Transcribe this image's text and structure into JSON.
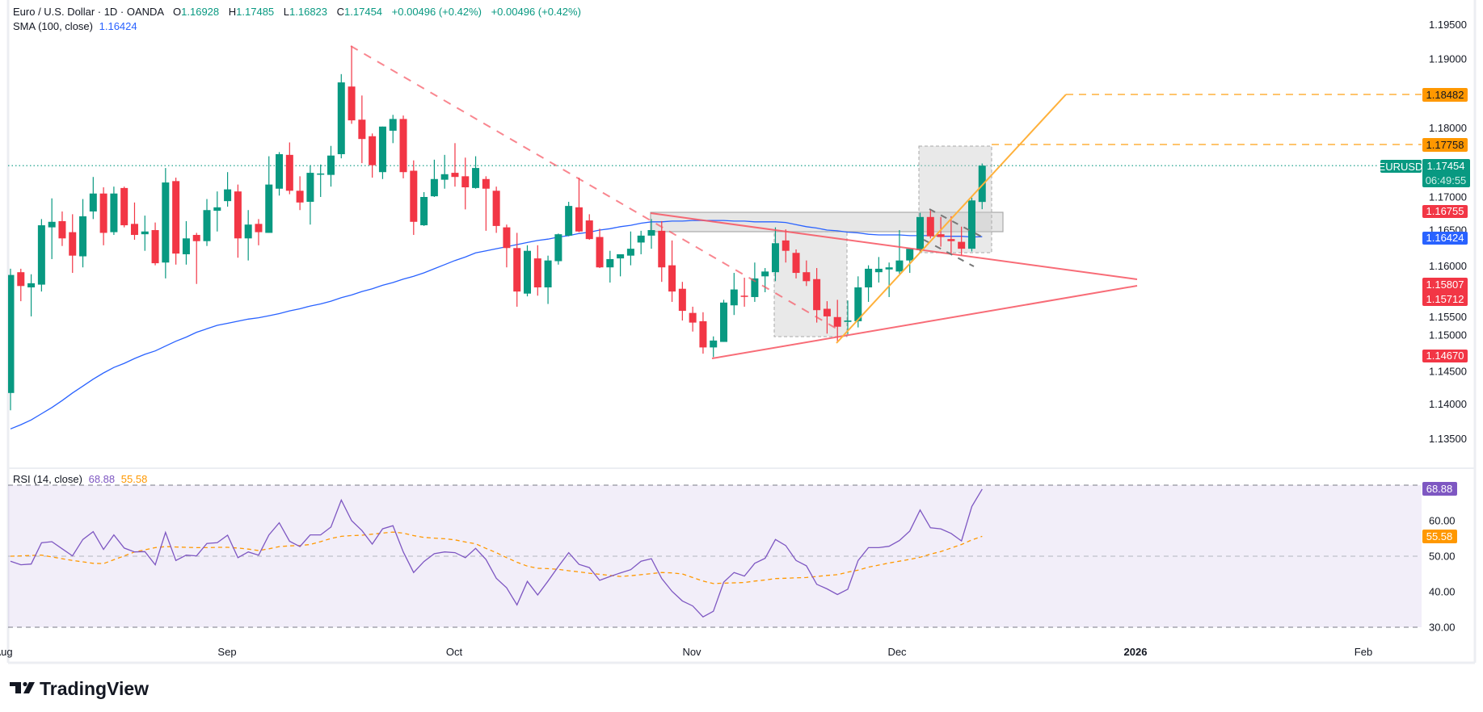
{
  "header": {
    "symbol": "Euro / U.S. Dollar · 1D · OANDA",
    "o_label": "O",
    "o": "1.16928",
    "h_label": "H",
    "h": "1.17485",
    "l_label": "L",
    "l": "1.16823",
    "c_label": "C",
    "c": "1.17454",
    "change1": "+0.00496 (+0.42%)",
    "change2": "+0.00496 (+0.42%)",
    "sma_label": "SMA (100, close)",
    "sma_value": "1.16424"
  },
  "rsi_header": {
    "label": "RSI (14, close)",
    "rsi_value": "68.88",
    "ma_value": "55.58"
  },
  "price_axis": {
    "ticks": [
      "1.19500",
      "1.19000",
      "1.18000",
      "1.17000",
      "1.16500",
      "1.16000",
      "1.15500",
      "1.15000",
      "1.14500",
      "1.14000",
      "1.13500"
    ],
    "labels": {
      "target2": "1.18482",
      "target1": "1.17758",
      "symbol_tag": "EURUSD",
      "last_price": "1.17454",
      "countdown": "06:49:55",
      "level_a": "1.16755",
      "sma": "1.16424",
      "level_b": "1.15807",
      "level_c": "1.15712",
      "level_d": "1.14670"
    }
  },
  "rsi_axis": {
    "ticks": [
      "60.00",
      "50.00",
      "40.00",
      "30.00"
    ],
    "rsi_label": "68.88",
    "ma_label": "55.58"
  },
  "time_axis": {
    "ticks": [
      "Aug",
      "Sep",
      "Oct",
      "Nov",
      "Dec",
      "2026",
      "Feb"
    ]
  },
  "brand": {
    "name": "TradingView"
  },
  "colors": {
    "up": "#089981",
    "down": "#f23645",
    "sma": "#2962ff",
    "rsi": "#7e57c2",
    "rsi_ma": "#ff9800",
    "target": "#ff9800",
    "trendline": "#f7525f"
  },
  "chart_data": {
    "type": "candlestick",
    "title": "Euro / U.S. Dollar · 1D · OANDA",
    "ylim": [
      1.133,
      1.197
    ],
    "ohlc": [
      [
        1.1416,
        1.1596,
        1.1391,
        1.1587
      ],
      [
        1.1591,
        1.1596,
        1.1549,
        1.1571
      ],
      [
        1.1569,
        1.1588,
        1.1527,
        1.1575
      ],
      [
        1.1573,
        1.1668,
        1.1563,
        1.1659
      ],
      [
        1.1656,
        1.1698,
        1.161,
        1.1664
      ],
      [
        1.1665,
        1.1679,
        1.1629,
        1.164
      ],
      [
        1.1649,
        1.1675,
        1.159,
        1.1615
      ],
      [
        1.1614,
        1.1697,
        1.1598,
        1.1672
      ],
      [
        1.1679,
        1.1729,
        1.1668,
        1.1705
      ],
      [
        1.1705,
        1.1714,
        1.163,
        1.1648
      ],
      [
        1.1649,
        1.1715,
        1.1645,
        1.1705
      ],
      [
        1.1713,
        1.1715,
        1.1656,
        1.1659
      ],
      [
        1.1661,
        1.1692,
        1.1638,
        1.1645
      ],
      [
        1.1646,
        1.1673,
        1.1622,
        1.165
      ],
      [
        1.1652,
        1.1663,
        1.1601,
        1.1604
      ],
      [
        1.1605,
        1.1742,
        1.1582,
        1.1721
      ],
      [
        1.1723,
        1.1728,
        1.1602,
        1.1618
      ],
      [
        1.1617,
        1.1665,
        1.1602,
        1.164
      ],
      [
        1.1645,
        1.1648,
        1.1574,
        1.1636
      ],
      [
        1.1636,
        1.1697,
        1.1629,
        1.1681
      ],
      [
        1.168,
        1.1708,
        1.165,
        1.1685
      ],
      [
        1.1694,
        1.1736,
        1.1686,
        1.1711
      ],
      [
        1.1708,
        1.1718,
        1.1612,
        1.164
      ],
      [
        1.164,
        1.1681,
        1.1608,
        1.166
      ],
      [
        1.1661,
        1.1668,
        1.163,
        1.1649
      ],
      [
        1.1648,
        1.1759,
        1.1648,
        1.1718
      ],
      [
        1.1712,
        1.1765,
        1.1702,
        1.1762
      ],
      [
        1.1761,
        1.1779,
        1.1704,
        1.1709
      ],
      [
        1.1709,
        1.173,
        1.1681,
        1.1692
      ],
      [
        1.1693,
        1.1746,
        1.166,
        1.1735
      ],
      [
        1.1733,
        1.1747,
        1.17,
        1.1734
      ],
      [
        1.1732,
        1.1774,
        1.1715,
        1.176
      ],
      [
        1.1762,
        1.1878,
        1.1756,
        1.1866
      ],
      [
        1.186,
        1.1919,
        1.1806,
        1.1811
      ],
      [
        1.1812,
        1.1847,
        1.1749,
        1.1784
      ],
      [
        1.1788,
        1.1792,
        1.1728,
        1.1746
      ],
      [
        1.1736,
        1.1802,
        1.1726,
        1.1802
      ],
      [
        1.1796,
        1.1819,
        1.1778,
        1.1813
      ],
      [
        1.1813,
        1.1818,
        1.1727,
        1.1736
      ],
      [
        1.1738,
        1.1753,
        1.1645,
        1.1664
      ],
      [
        1.1659,
        1.1707,
        1.1658,
        1.17
      ],
      [
        1.1701,
        1.1754,
        1.17,
        1.1726
      ],
      [
        1.1725,
        1.1761,
        1.1712,
        1.1733
      ],
      [
        1.1735,
        1.1778,
        1.1715,
        1.1729
      ],
      [
        1.173,
        1.1757,
        1.1682,
        1.1714
      ],
      [
        1.1713,
        1.1759,
        1.1712,
        1.1742
      ],
      [
        1.1726,
        1.173,
        1.1651,
        1.1712
      ],
      [
        1.1709,
        1.1715,
        1.1648,
        1.1658
      ],
      [
        1.1656,
        1.166,
        1.1598,
        1.1626
      ],
      [
        1.1626,
        1.1648,
        1.1541,
        1.1563
      ],
      [
        1.156,
        1.163,
        1.1556,
        1.1622
      ],
      [
        1.1611,
        1.163,
        1.1557,
        1.1569
      ],
      [
        1.1569,
        1.1615,
        1.1545,
        1.1608
      ],
      [
        1.1607,
        1.1647,
        1.1602,
        1.1646
      ],
      [
        1.1644,
        1.1693,
        1.1643,
        1.1687
      ],
      [
        1.1685,
        1.1728,
        1.1649,
        1.165
      ],
      [
        1.1666,
        1.1675,
        1.1638,
        1.1639
      ],
      [
        1.1642,
        1.1654,
        1.1597,
        1.1598
      ],
      [
        1.1598,
        1.1622,
        1.1576,
        1.161
      ],
      [
        1.1611,
        1.1617,
        1.1585,
        1.1617
      ],
      [
        1.1615,
        1.165,
        1.1601,
        1.1625
      ],
      [
        1.1634,
        1.1651,
        1.1617,
        1.1644
      ],
      [
        1.1644,
        1.1668,
        1.1625,
        1.1652
      ],
      [
        1.1651,
        1.1665,
        1.1577,
        1.1598
      ],
      [
        1.1601,
        1.1637,
        1.1548,
        1.1563
      ],
      [
        1.1567,
        1.1577,
        1.1521,
        1.1535
      ],
      [
        1.1532,
        1.1541,
        1.1505,
        1.1518
      ],
      [
        1.152,
        1.1533,
        1.1473,
        1.1482
      ],
      [
        1.1482,
        1.1498,
        1.1468,
        1.1492
      ],
      [
        1.149,
        1.1551,
        1.149,
        1.1547
      ],
      [
        1.1543,
        1.159,
        1.1529,
        1.1566
      ],
      [
        1.1557,
        1.1583,
        1.1541,
        1.1556
      ],
      [
        1.1555,
        1.1605,
        1.1548,
        1.1582
      ],
      [
        1.1585,
        1.1597,
        1.1562,
        1.1592
      ],
      [
        1.1591,
        1.1656,
        1.1578,
        1.1633
      ],
      [
        1.1637,
        1.1653,
        1.1605,
        1.1622
      ],
      [
        1.1619,
        1.1624,
        1.1582,
        1.159
      ],
      [
        1.1591,
        1.1608,
        1.1571,
        1.1578
      ],
      [
        1.1581,
        1.1597,
        1.1518,
        1.1536
      ],
      [
        1.1538,
        1.1549,
        1.1502,
        1.1527
      ],
      [
        1.1526,
        1.1551,
        1.1491,
        1.1512
      ],
      [
        1.1519,
        1.155,
        1.1501,
        1.1521
      ],
      [
        1.152,
        1.1585,
        1.1511,
        1.1569
      ],
      [
        1.1569,
        1.1601,
        1.1548,
        1.1596
      ],
      [
        1.1591,
        1.1613,
        1.1576,
        1.1596
      ],
      [
        1.1595,
        1.1605,
        1.1555,
        1.1598
      ],
      [
        1.1592,
        1.1652,
        1.1589,
        1.1608
      ],
      [
        1.1608,
        1.1625,
        1.159,
        1.1625
      ],
      [
        1.1623,
        1.1677,
        1.1621,
        1.1671
      ],
      [
        1.1671,
        1.1681,
        1.164,
        1.1643
      ],
      [
        1.1646,
        1.1671,
        1.1628,
        1.1642
      ],
      [
        1.1639,
        1.1672,
        1.1617,
        1.1636
      ],
      [
        1.1635,
        1.1657,
        1.1615,
        1.1625
      ],
      [
        1.1625,
        1.1699,
        1.1621,
        1.1695
      ],
      [
        1.16928,
        1.17485,
        1.16823,
        1.17454
      ]
    ],
    "sma100": [
      1.1364,
      1.137,
      1.1377,
      1.1386,
      1.1395,
      1.1405,
      1.1416,
      1.1426,
      1.1436,
      1.1445,
      1.1453,
      1.1459,
      1.1466,
      1.1472,
      1.1477,
      1.1484,
      1.1491,
      1.1497,
      1.1504,
      1.1509,
      1.1514,
      1.1517,
      1.152,
      1.1523,
      1.1525,
      1.1528,
      1.1531,
      1.1535,
      1.1538,
      1.1542,
      1.1545,
      1.1549,
      1.1554,
      1.1558,
      1.1563,
      1.1567,
      1.1572,
      1.1576,
      1.1581,
      1.1585,
      1.159,
      1.1596,
      1.1602,
      1.1608,
      1.1613,
      1.1619,
      1.1622,
      1.1625,
      1.1628,
      1.1631,
      1.1634,
      1.1637,
      1.1639,
      1.1642,
      1.1644,
      1.1647,
      1.1649,
      1.1652,
      1.1654,
      1.1657,
      1.1659,
      1.1662,
      1.1664,
      1.1664,
      1.1665,
      1.1665,
      1.1666,
      1.1666,
      1.1666,
      1.1666,
      1.1665,
      1.1665,
      1.1664,
      1.1664,
      1.1664,
      1.1663,
      1.166,
      1.1657,
      1.1655,
      1.1652,
      1.1651,
      1.1649,
      1.1648,
      1.1646,
      1.1645,
      1.1645,
      1.1645,
      1.1644,
      1.1644,
      1.1644,
      1.1643,
      1.1643,
      1.1643,
      1.1642,
      1.16424
    ],
    "rsi": {
      "ylim": [
        30,
        70
      ],
      "rsi": [
        48.6,
        47.6,
        47.8,
        53.8,
        54.1,
        52.1,
        50.1,
        54.7,
        56.9,
        51.9,
        56.0,
        52.3,
        51.2,
        51.3,
        47.6,
        56.7,
        48.8,
        50.3,
        50.1,
        53.6,
        53.8,
        55.9,
        49.6,
        51.2,
        50.3,
        56.0,
        59.4,
        54.2,
        52.7,
        56.0,
        56.0,
        58.2,
        65.8,
        60.0,
        57.2,
        53.4,
        57.7,
        58.6,
        51.2,
        45.4,
        48.5,
        50.7,
        51.2,
        51.0,
        49.6,
        52.2,
        49.1,
        43.8,
        41.1,
        36.3,
        42.9,
        39.1,
        43.0,
        47.1,
        51.0,
        47.7,
        46.8,
        43.2,
        44.3,
        45.3,
        46.2,
        48.6,
        49.3,
        43.7,
        40.1,
        37.4,
        36.0,
        32.9,
        34.5,
        42.7,
        45.4,
        44.4,
        48.0,
        49.4,
        54.7,
        53.0,
        48.8,
        47.3,
        42.1,
        40.8,
        39.2,
        40.7,
        48.8,
        52.4,
        52.4,
        52.8,
        54.4,
        57.1,
        63.0,
        58.0,
        57.7,
        56.4,
        54.3,
        64.0,
        68.88
      ],
      "ma": [
        50.0,
        50.1,
        50.2,
        50.3,
        49.8,
        49.3,
        48.8,
        48.4,
        48.0,
        47.9,
        49.0,
        50.1,
        51.2,
        51.8,
        52.4,
        52.7,
        52.6,
        52.5,
        52.4,
        52.4,
        52.5,
        52.5,
        52.3,
        52.0,
        51.6,
        52.1,
        52.7,
        52.9,
        53.0,
        53.3,
        54.1,
        55.0,
        55.6,
        55.8,
        55.9,
        56.2,
        56.5,
        56.8,
        56.5,
        55.8,
        55.3,
        55.1,
        54.9,
        54.6,
        54.0,
        53.5,
        52.2,
        51.0,
        49.6,
        48.3,
        47.2,
        46.6,
        46.5,
        46.3,
        45.9,
        45.6,
        45.2,
        44.9,
        44.6,
        44.3,
        44.5,
        44.8,
        45.1,
        45.4,
        45.3,
        45.0,
        44.0,
        43.0,
        42.3,
        42.4,
        42.5,
        42.6,
        43.0,
        43.3,
        43.7,
        43.8,
        43.9,
        44.0,
        44.3,
        44.6,
        44.8,
        45.5,
        46.1,
        46.9,
        47.5,
        48.1,
        48.6,
        49.1,
        49.7,
        50.6,
        51.3,
        52.3,
        53.3,
        54.6,
        55.58
      ]
    }
  }
}
